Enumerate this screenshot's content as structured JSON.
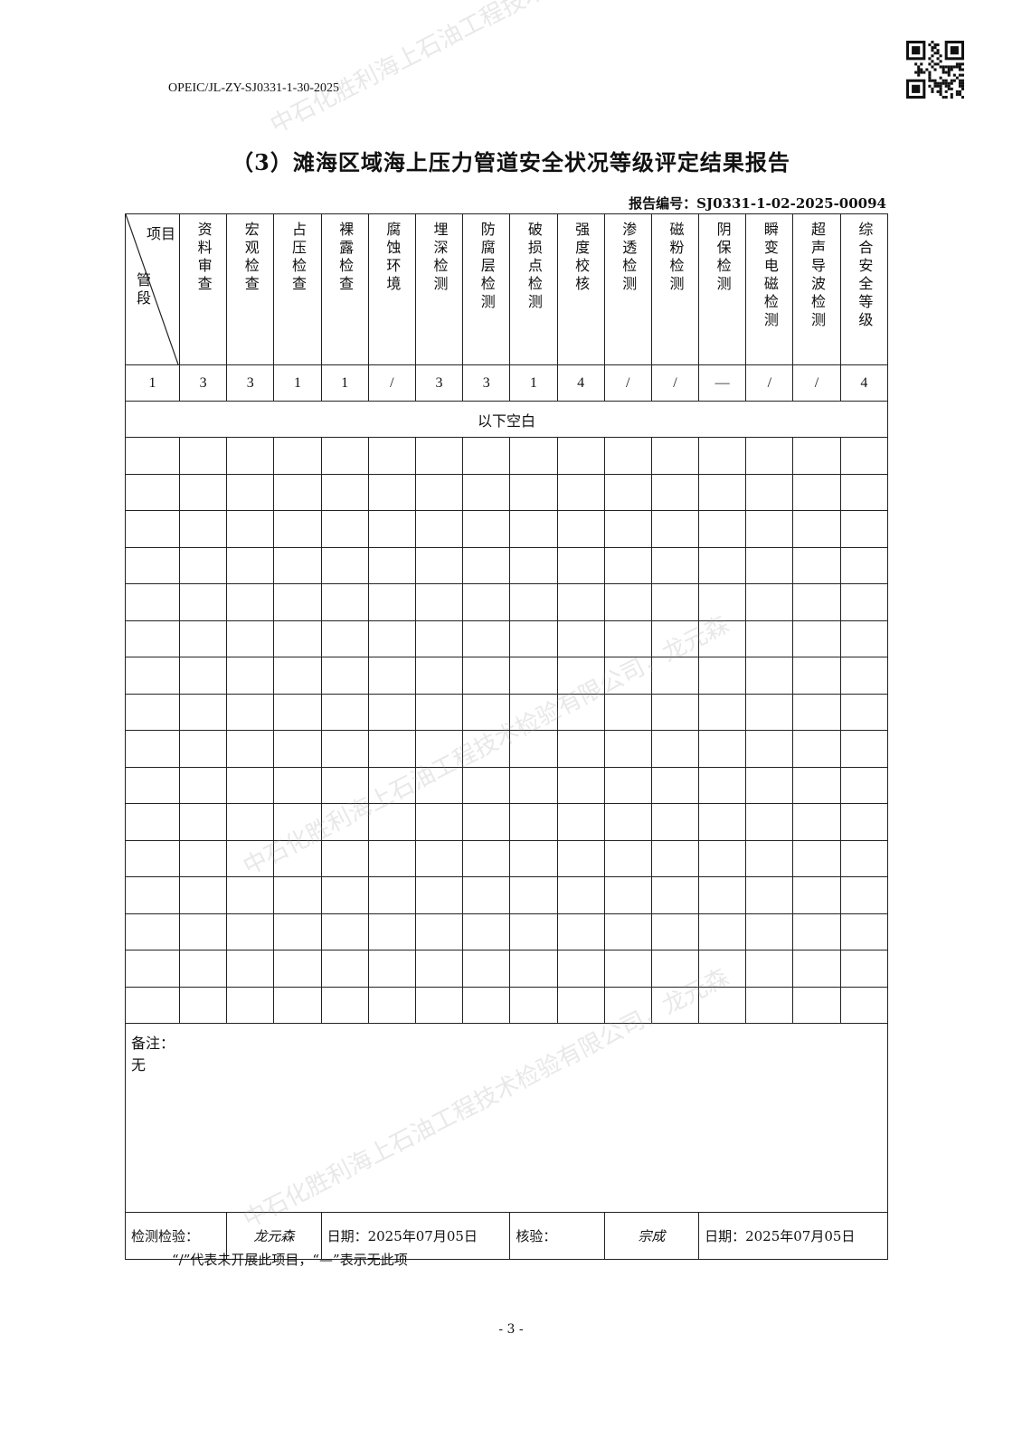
{
  "doc_number": "OPEIC/JL-ZY-SJ0331-1-30-2025",
  "title": "（3）滩海区域海上压力管道安全状况等级评定结果报告",
  "report_no": "报告编号：SJ0331-1-02-2025-00094",
  "table": {
    "corner_top": "项目",
    "corner_bottom": "管段",
    "columns": [
      "资料审查",
      "宏观检查",
      "占压检查",
      "裸露检查",
      "腐蚀环境",
      "埋深检测",
      "防腐层检测",
      "破损点检测",
      "强度校核",
      "渗透检测",
      "磁粉检测",
      "阴保检测",
      "瞬变电磁检测",
      "超声导波检测",
      "综合安全等级"
    ],
    "rows": [
      {
        "segment": "1",
        "values": [
          "3",
          "3",
          "1",
          "1",
          "/",
          "3",
          "3",
          "1",
          "4",
          "/",
          "/",
          "—",
          "/",
          "/",
          "4"
        ]
      }
    ],
    "blank_note": "以下空白",
    "empty_row_count": 16
  },
  "notes": {
    "label": "备注：",
    "text": "无"
  },
  "signatures": {
    "inspector_label": "检测检验：",
    "inspector_signature": "龙元森",
    "inspector_date": "日期：2025年07月05日",
    "reviewer_label": "核验：",
    "reviewer_signature": "宗成",
    "reviewer_date": "日期：2025年07月05日"
  },
  "footnote": "“/”代表未开展此项目，“—”表示无此项",
  "page_number": "- 3 -",
  "watermark": "中石化胜利海上石油工程技术检验有限公司，龙元森"
}
